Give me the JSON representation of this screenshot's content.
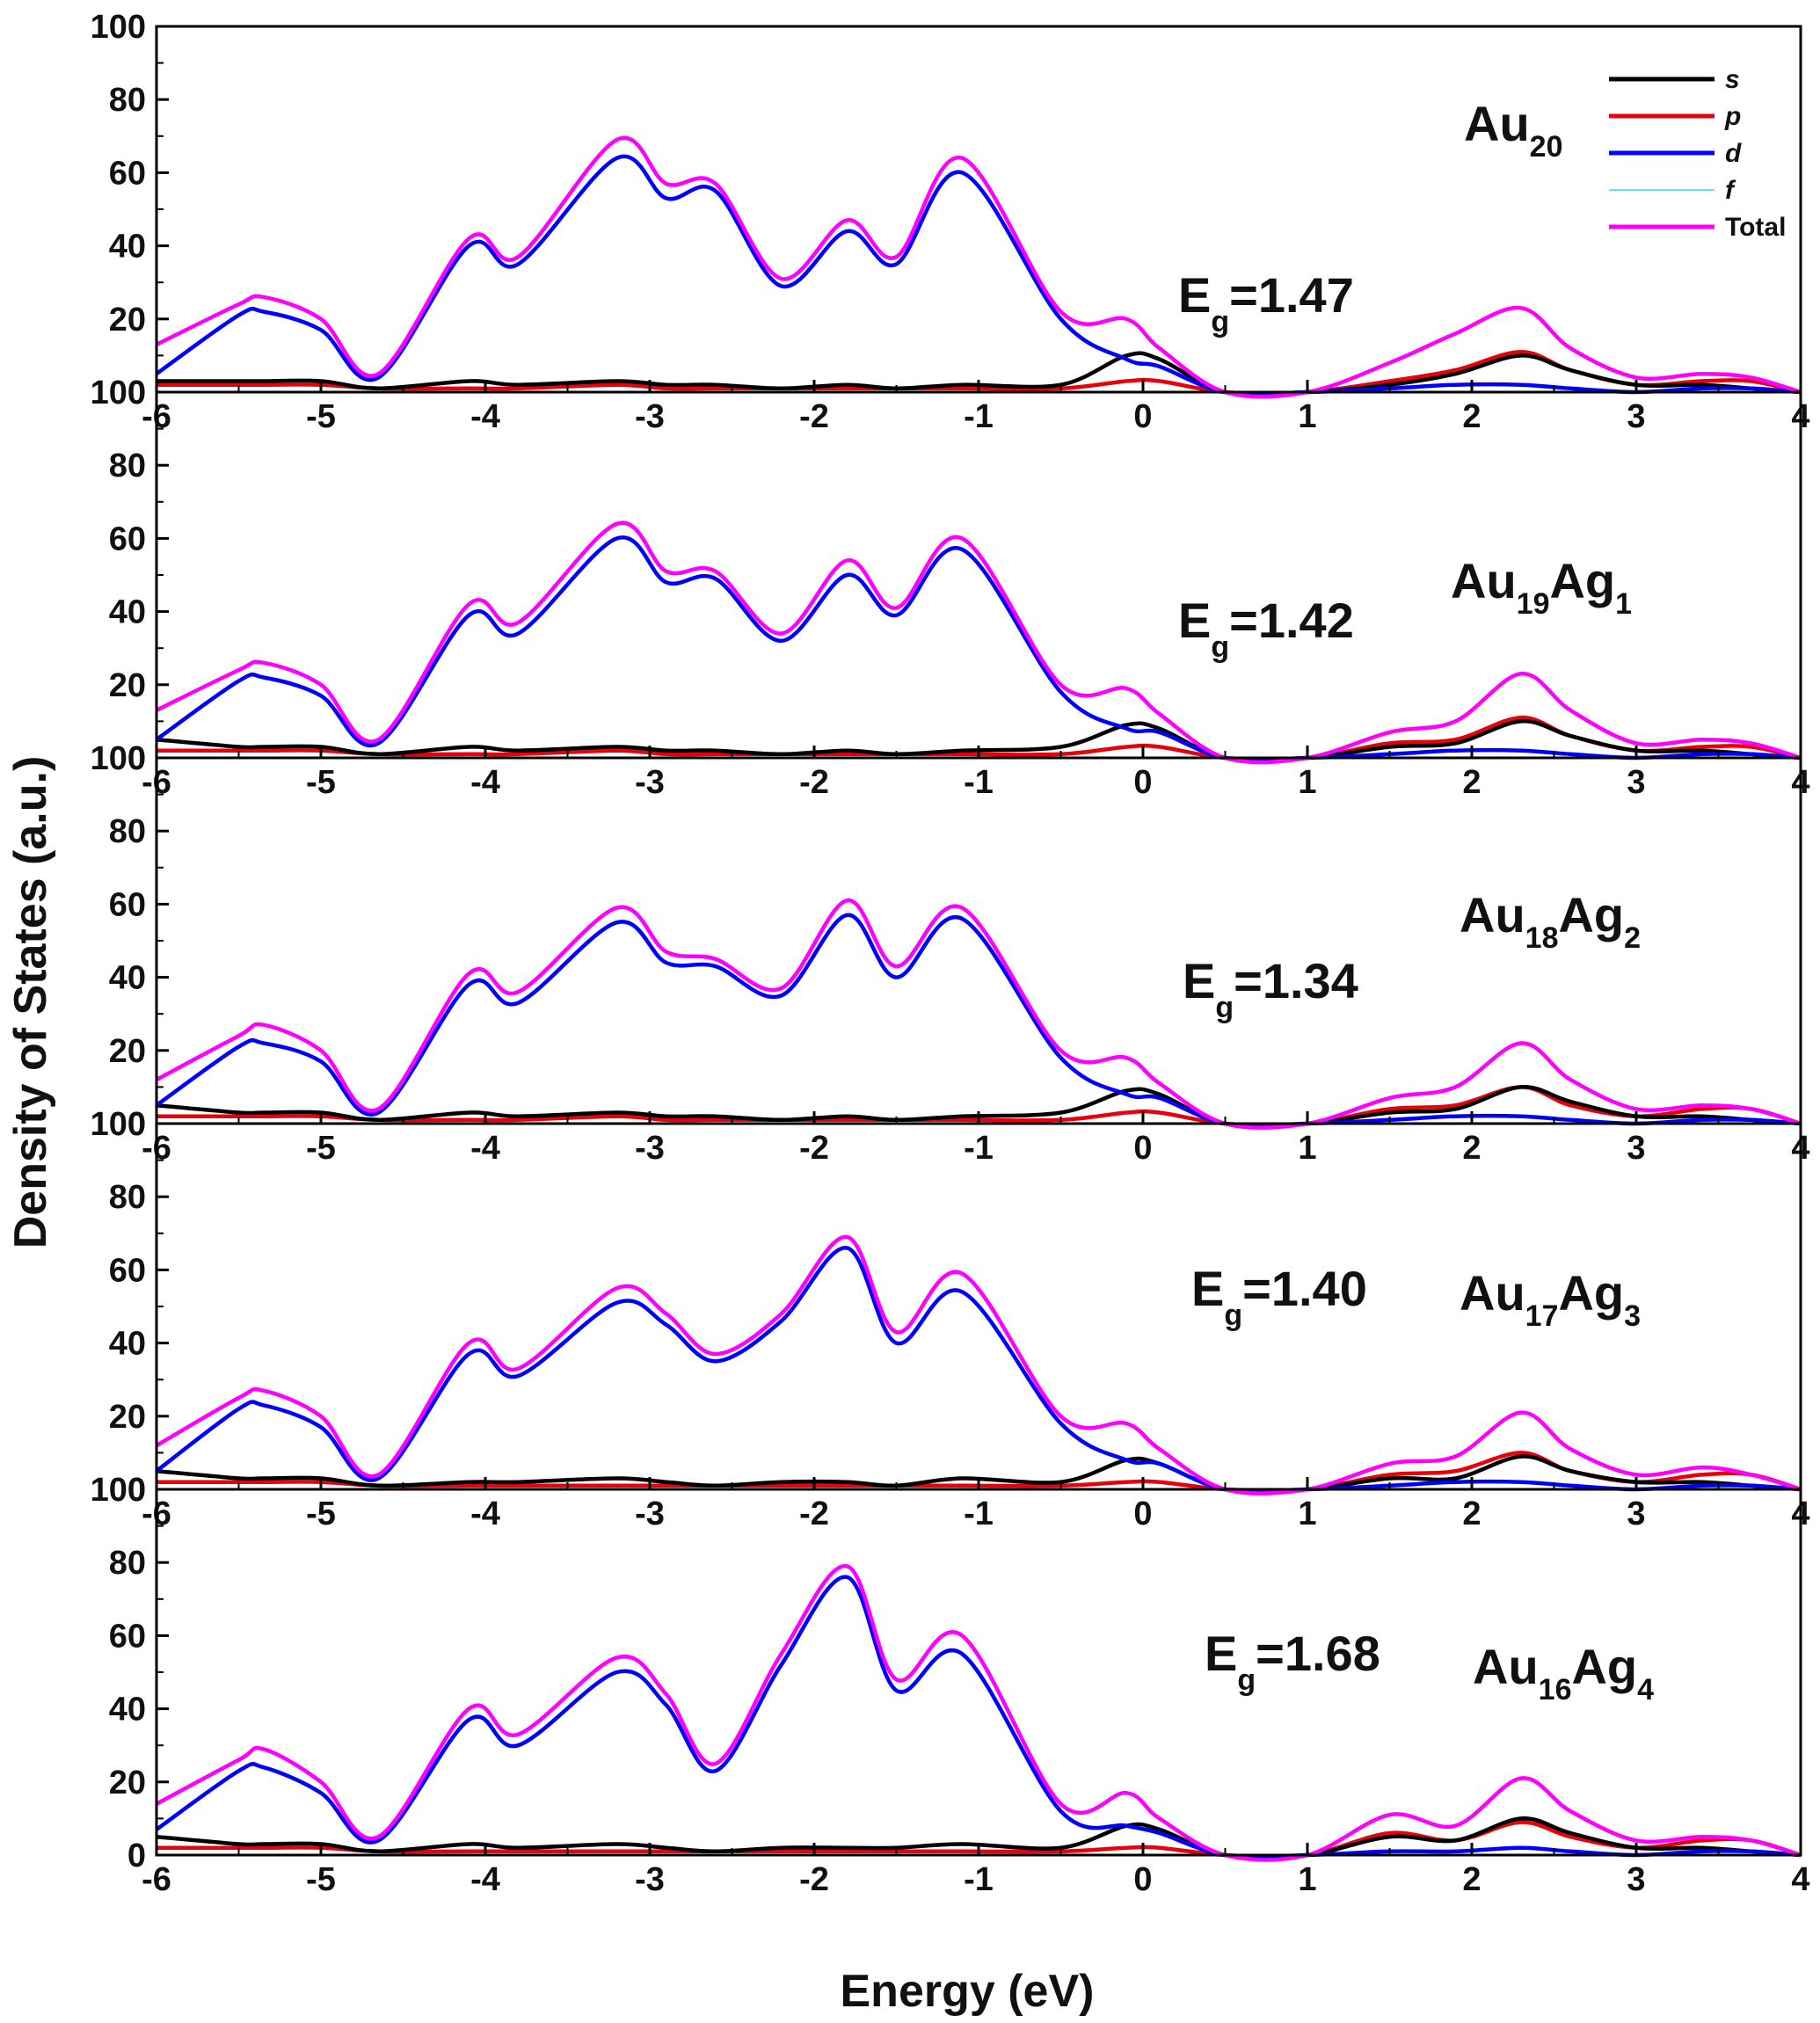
{
  "chart_data": {
    "type": "line",
    "xlabel": "Energy (eV)",
    "ylabel": "Density of States (a.u.)",
    "xlim": [
      -6,
      4
    ],
    "ylim": [
      0,
      100
    ],
    "xticks": [
      -6,
      -5,
      -4,
      -3,
      -2,
      -1,
      0,
      1,
      2,
      3,
      4
    ],
    "xtick_labels": [
      "-6",
      "-5",
      "-4",
      "-3",
      "-2",
      "-1",
      "0",
      "1",
      "2",
      "3",
      "4"
    ],
    "yticks": [
      0,
      20,
      40,
      60,
      80,
      100
    ],
    "ytick_labels": [
      "0",
      "20",
      "40",
      "60",
      "80",
      "100"
    ],
    "legend": [
      {
        "name": "s",
        "color": "#000000"
      },
      {
        "name": "p",
        "color": "#e8000b"
      },
      {
        "name": "d",
        "color": "#0000ff"
      },
      {
        "name": "f",
        "color": "#66e0ff"
      },
      {
        "name": "Total",
        "color": "#ff00ff"
      }
    ],
    "x": [
      -6,
      -5.5,
      -5.35,
      -5,
      -4.65,
      -4.1,
      -3.8,
      -3.2,
      -2.9,
      -2.6,
      -2.2,
      -1.8,
      -1.5,
      -1.1,
      -0.5,
      -0.1,
      0.1,
      0.5,
      1.0,
      1.5,
      1.9,
      2.3,
      2.6,
      3.0,
      3.4,
      3.7,
      4.0
    ],
    "panels": [
      {
        "cluster": "Au",
        "cluster_sub": "20",
        "cluster2": "",
        "cluster2_sub": "",
        "gap_prefix": "E",
        "gap_sub": "g",
        "gap_value": "=1.47",
        "series": [
          {
            "name": "Total",
            "values": [
              13,
              24,
              26,
              20,
              5,
              42,
              37,
              69,
              57,
              57,
              31,
              47,
              37,
              64,
              22,
              20,
              12,
              0,
              0,
              8,
              16,
              23,
              12,
              4,
              5,
              4,
              0
            ]
          },
          {
            "name": "d",
            "values": [
              5,
              21,
              22,
              17,
              4,
              40,
              35,
              64,
              53,
              55,
              29,
              44,
              35,
              60,
              20,
              9,
              7,
              0,
              0,
              1,
              2,
              2,
              1,
              0,
              1,
              1,
              0
            ]
          },
          {
            "name": "s",
            "values": [
              3,
              3,
              3,
              3,
              1,
              3,
              2,
              3,
              2,
              2,
              1,
              2,
              1,
              2,
              2,
              10,
              9,
              0,
              0,
              2,
              5,
              10,
              6,
              2,
              2,
              1,
              0
            ]
          },
          {
            "name": "p",
            "values": [
              2,
              2,
              2,
              2,
              1,
              1,
              1,
              2,
              1,
              1,
              1,
              1,
              1,
              1,
              1,
              3,
              3,
              0,
              0,
              3,
              6,
              11,
              6,
              2,
              3,
              3,
              0
            ]
          },
          {
            "name": "f",
            "values": [
              0,
              0,
              0,
              0,
              0,
              0,
              0,
              0,
              0,
              0,
              0,
              0,
              0,
              0,
              0,
              0,
              0,
              0,
              0,
              0,
              0,
              0,
              0,
              0,
              0,
              0,
              0
            ]
          }
        ]
      },
      {
        "cluster": "Au",
        "cluster_sub": "19",
        "cluster2": "Ag",
        "cluster2_sub": "1",
        "gap_prefix": "E",
        "gap_sub": "g",
        "gap_value": "=1.42",
        "series": [
          {
            "name": "Total",
            "values": [
              13,
              24,
              26,
              20,
              5,
              42,
              37,
              64,
              51,
              51,
              34,
              54,
              41,
              60,
              20,
              19,
              12,
              0,
              0,
              7,
              10,
              23,
              13,
              4,
              5,
              4,
              0
            ]
          },
          {
            "name": "d",
            "values": [
              5,
              21,
              22,
              17,
              4,
              39,
              34,
              60,
              48,
              49,
              32,
              50,
              39,
              57,
              18,
              8,
              7,
              0,
              0,
              1,
              2,
              2,
              1,
              0,
              1,
              1,
              0
            ]
          },
          {
            "name": "s",
            "values": [
              5,
              3,
              3,
              3,
              1,
              3,
              2,
              3,
              2,
              2,
              1,
              2,
              1,
              2,
              3,
              9,
              8,
              0,
              0,
              3,
              4,
              10,
              6,
              2,
              2,
              1,
              0
            ]
          },
          {
            "name": "p",
            "values": [
              2,
              2,
              2,
              2,
              1,
              1,
              1,
              2,
              1,
              1,
              1,
              1,
              1,
              1,
              1,
              3,
              3,
              0,
              0,
              4,
              5,
              11,
              6,
              2,
              3,
              3,
              0
            ]
          },
          {
            "name": "f",
            "values": [
              0,
              0,
              0,
              0,
              0,
              0,
              0,
              0,
              0,
              0,
              0,
              0,
              0,
              0,
              0,
              0,
              0,
              0,
              0,
              0,
              0,
              0,
              0,
              0,
              0,
              0,
              0
            ]
          }
        ]
      },
      {
        "cluster": "Au",
        "cluster_sub": "18",
        "cluster2": "Ag",
        "cluster2_sub": "2",
        "gap_prefix": "E",
        "gap_sub": "g",
        "gap_value": "=1.34",
        "series": [
          {
            "name": "Total",
            "values": [
              12,
              24,
              27,
              20,
              4,
              41,
              36,
              59,
              47,
              45,
              37,
              61,
              43,
              59,
              20,
              18,
              11,
              0,
              0,
              7,
              10,
              22,
              12,
              4,
              5,
              4,
              0
            ]
          },
          {
            "name": "d",
            "values": [
              5,
              21,
              22,
              17,
              3,
              38,
              33,
              55,
              44,
              43,
              35,
              57,
              40,
              56,
              18,
              8,
              7,
              0,
              0,
              1,
              2,
              2,
              1,
              0,
              1,
              1,
              0
            ]
          },
          {
            "name": "s",
            "values": [
              5,
              3,
              3,
              3,
              1,
              3,
              2,
              3,
              2,
              2,
              1,
              2,
              1,
              2,
              3,
              9,
              8,
              0,
              0,
              3,
              4,
              10,
              6,
              2,
              2,
              1,
              0
            ]
          },
          {
            "name": "p",
            "values": [
              2,
              2,
              2,
              2,
              1,
              1,
              1,
              2,
              1,
              1,
              1,
              1,
              1,
              1,
              1,
              3,
              3,
              0,
              0,
              4,
              5,
              10,
              5,
              2,
              4,
              4,
              0
            ]
          },
          {
            "name": "f",
            "values": [
              0,
              0,
              0,
              0,
              0,
              0,
              0,
              0,
              0,
              0,
              0,
              0,
              0,
              0,
              0,
              0,
              0,
              0,
              0,
              0,
              0,
              0,
              0,
              0,
              0,
              0,
              0
            ]
          }
        ]
      },
      {
        "cluster": "Au",
        "cluster_sub": "17",
        "cluster2": "Ag",
        "cluster2_sub": "3",
        "gap_prefix": "E",
        "gap_sub": "g",
        "gap_value": "=1.40",
        "series": [
          {
            "name": "Total",
            "values": [
              12,
              25,
              27,
              20,
              4,
              40,
              33,
              55,
              48,
              37,
              48,
              69,
              43,
              59,
              20,
              18,
              11,
              0,
              0,
              7,
              9,
              21,
              11,
              4,
              6,
              4,
              0
            ]
          },
          {
            "name": "d",
            "values": [
              5,
              22,
              23,
              17,
              3,
              37,
              31,
              51,
              45,
              35,
              46,
              66,
              40,
              54,
              18,
              8,
              7,
              0,
              0,
              1,
              2,
              2,
              1,
              0,
              1,
              1,
              0
            ]
          },
          {
            "name": "s",
            "values": [
              5,
              3,
              3,
              3,
              1,
              2,
              2,
              3,
              2,
              1,
              2,
              2,
              1,
              3,
              2,
              8,
              7,
              0,
              0,
              3,
              3,
              9,
              5,
              2,
              2,
              1,
              0
            ]
          },
          {
            "name": "p",
            "values": [
              2,
              2,
              2,
              2,
              1,
              1,
              1,
              1,
              1,
              1,
              1,
              1,
              1,
              1,
              1,
              2,
              2,
              0,
              0,
              4,
              5,
              10,
              5,
              2,
              4,
              4,
              0
            ]
          },
          {
            "name": "f",
            "values": [
              0,
              0,
              0,
              0,
              0,
              0,
              0,
              0,
              0,
              0,
              0,
              0,
              0,
              0,
              0,
              0,
              0,
              0,
              0,
              0,
              0,
              0,
              0,
              0,
              0,
              0,
              0
            ]
          }
        ]
      },
      {
        "cluster": "Au",
        "cluster_sub": "16",
        "cluster2": "Ag",
        "cluster2_sub": "4",
        "gap_prefix": "E",
        "gap_sub": "g",
        "gap_value": "=1.68",
        "series": [
          {
            "name": "Total",
            "values": [
              14,
              26,
              29,
              20,
              5,
              40,
              33,
              54,
              44,
              25,
              55,
              79,
              48,
              60,
              14,
              17,
              10,
              0,
              0,
              11,
              8,
              21,
              12,
              4,
              5,
              4,
              0
            ]
          },
          {
            "name": "d",
            "values": [
              7,
              23,
              24,
              17,
              4,
              37,
              30,
              50,
              41,
              23,
              52,
              76,
              45,
              55,
              12,
              8,
              6,
              0,
              0,
              1,
              1,
              2,
              1,
              0,
              1,
              1,
              0
            ]
          },
          {
            "name": "s",
            "values": [
              5,
              3,
              3,
              3,
              1,
              3,
              2,
              3,
              2,
              1,
              2,
              2,
              2,
              3,
              2,
              8,
              7,
              0,
              0,
              5,
              4,
              10,
              6,
              2,
              2,
              1,
              0
            ]
          },
          {
            "name": "p",
            "values": [
              2,
              2,
              2,
              2,
              1,
              1,
              1,
              1,
              1,
              1,
              1,
              1,
              1,
              1,
              1,
              2,
              2,
              0,
              0,
              6,
              4,
              9,
              5,
              2,
              4,
              4,
              0
            ]
          },
          {
            "name": "f",
            "values": [
              0,
              0,
              0,
              0,
              0,
              0,
              0,
              0,
              0,
              0,
              0,
              0,
              0,
              0,
              0,
              0,
              0,
              0,
              0,
              0,
              0,
              0,
              0,
              0,
              0,
              0,
              0
            ]
          }
        ]
      }
    ]
  }
}
